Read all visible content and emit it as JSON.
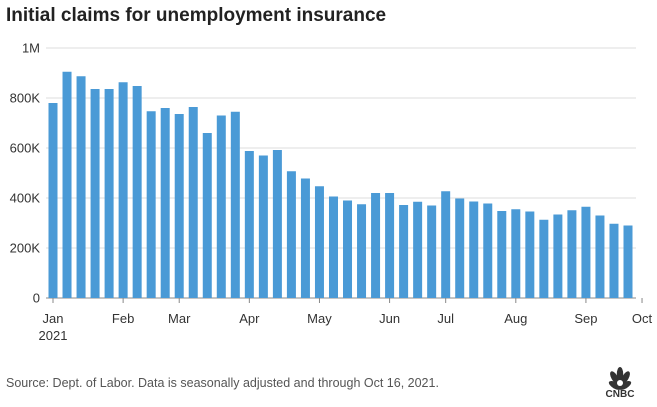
{
  "chart_data": {
    "type": "bar",
    "title": "Initial claims for unemployment insurance",
    "xlabel": "",
    "ylabel": "",
    "ylim": [
      0,
      1000000
    ],
    "yticks": [
      {
        "value": 0,
        "label": "0"
      },
      {
        "value": 200000,
        "label": "200K"
      },
      {
        "value": 400000,
        "label": "400K"
      },
      {
        "value": 600000,
        "label": "600K"
      },
      {
        "value": 800000,
        "label": "800K"
      },
      {
        "value": 1000000,
        "label": "1M"
      }
    ],
    "xticks": [
      {
        "index": 0,
        "label": "Jan",
        "sublabel": "2021"
      },
      {
        "index": 5,
        "label": "Feb"
      },
      {
        "index": 9,
        "label": "Mar"
      },
      {
        "index": 14,
        "label": "Apr"
      },
      {
        "index": 19,
        "label": "May"
      },
      {
        "index": 24,
        "label": "Jun"
      },
      {
        "index": 28,
        "label": "Jul"
      },
      {
        "index": 33,
        "label": "Aug"
      },
      {
        "index": 38,
        "label": "Sep"
      },
      {
        "index": 42,
        "label": "Oct"
      }
    ],
    "grid": true,
    "bar_color": "#4a9ad6",
    "values": [
      780000,
      905000,
      887000,
      836000,
      836000,
      863000,
      848000,
      747000,
      760000,
      736000,
      764000,
      660000,
      730000,
      745000,
      588000,
      570000,
      592000,
      507000,
      478000,
      447000,
      406000,
      390000,
      375000,
      420000,
      420000,
      372000,
      385000,
      370000,
      427000,
      398000,
      386000,
      378000,
      348000,
      355000,
      346000,
      313000,
      334000,
      351000,
      365000,
      330000,
      297000,
      290000
    ]
  },
  "source": "Source: Dept. of Labor. Data is seasonally adjusted and through Oct 16, 2021.",
  "logo": {
    "text": "CNBC"
  }
}
